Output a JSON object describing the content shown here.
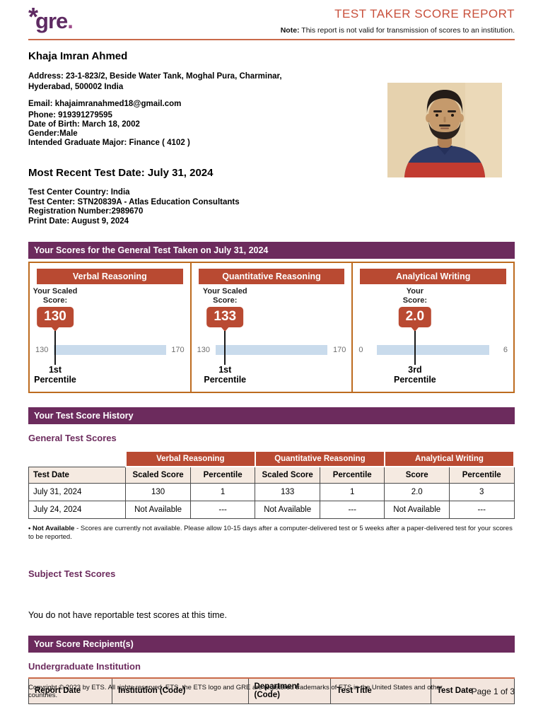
{
  "header": {
    "logo_asterisk": "*",
    "logo_text": "gre",
    "logo_dot": ".",
    "title": "TEST TAKER SCORE REPORT",
    "note_label": "Note:",
    "note_text": " This report is not valid for transmission of scores to an institution."
  },
  "personal": {
    "name": "Khaja Imran Ahmed",
    "address_line1": "Address: 23-1-823/2, Beside Water Tank, Moghal Pura, Charminar,",
    "address_line2": "Hyderabad, 500002 India",
    "email": "Email: khajaimranahmed18@gmail.com",
    "phone": "Phone: 919391279595",
    "dob": "Date of Birth: March 18, 2002",
    "gender": "Gender:Male",
    "major": "Intended Graduate Major: Finance ( 4102 )"
  },
  "recent_test": {
    "heading": "Most Recent Test Date: July 31, 2024",
    "center_country": "Test Center Country: India",
    "center": "Test Center: STN20839A - Atlas Education Consultants",
    "registration": "Registration Number:2989670",
    "print_date": "Print Date: August 9, 2024"
  },
  "scores_section": {
    "banner": "Your Scores for the General Test Taken on July 31, 2024",
    "cards": [
      {
        "title": "Verbal Reasoning",
        "label_line1": "Your Scaled",
        "label_line2": "Score:",
        "score": "130",
        "value": 130,
        "min": 130,
        "max": 170,
        "percentile_line1": "1st",
        "percentile_line2": "Percentile"
      },
      {
        "title": "Quantitative Reasoning",
        "label_line1": "Your Scaled",
        "label_line2": "Score:",
        "score": "133",
        "value": 133,
        "min": 130,
        "max": 170,
        "percentile_line1": "1st",
        "percentile_line2": "Percentile"
      },
      {
        "title": "Analytical Writing",
        "label_line1": "Your",
        "label_line2": "Score:",
        "score": "2.0",
        "value": 2.0,
        "min": 0,
        "max": 6,
        "percentile_line1": "3rd",
        "percentile_line2": "Percentile"
      }
    ]
  },
  "history_section": {
    "banner": "Your Test Score History",
    "heading": "General Test Scores",
    "table": {
      "group_headers": [
        "Verbal Reasoning",
        "Quantitative Reasoning",
        "Analytical Writing"
      ],
      "columns": [
        "Test Date",
        "Scaled Score",
        "Percentile",
        "Scaled Score",
        "Percentile",
        "Score",
        "Percentile"
      ],
      "rows": [
        [
          "July 31, 2024",
          "130",
          "1",
          "133",
          "1",
          "2.0",
          "3"
        ],
        [
          "July 24, 2024",
          "Not Available",
          "---",
          "Not Available",
          "---",
          "Not Available",
          "---"
        ]
      ]
    },
    "footnote_bold": "• Not Available",
    "footnote_rest": " - Scores are currently not available. Please allow 10-15 days after a computer-delivered test or 5 weeks after a paper-delivered test for your scores to be reported."
  },
  "subject_section": {
    "heading": "Subject Test Scores",
    "empty_text": "You do not have reportable test scores at this time."
  },
  "recipients_section": {
    "banner": "Your Score Recipient(s)",
    "heading": "Undergraduate Institution",
    "columns": [
      "Report Date",
      "Institution (Code)",
      "Department (Code)",
      "Test Title",
      "Test Date"
    ]
  },
  "footer": {
    "copyright": "Copyright © 2023 by ETS. All rights reserved. ETS, the ETS logo and GRE are registered trademarks of ETS in the United States and other countries.",
    "page": "Page 1 of 3"
  },
  "colors": {
    "brand_purple": "#6C2B5D",
    "accent_red": "#B94A32",
    "rule_orange": "#C96A4A",
    "box_border_orange": "#BD6B1F",
    "scale_bar_blue": "#C9DBEC",
    "table_header_beige": "#F5EAE1"
  }
}
